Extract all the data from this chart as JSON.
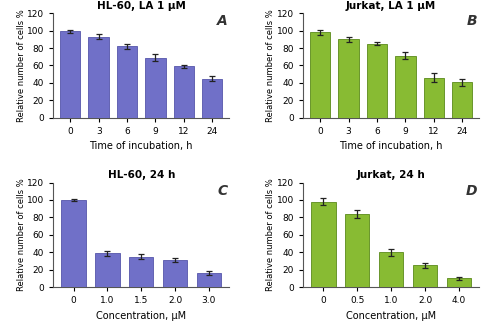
{
  "panel_A": {
    "title": "HL-60, LA 1 μM",
    "label": "A",
    "x_labels": [
      "0",
      "3",
      "6",
      "9",
      "12",
      "24"
    ],
    "values": [
      99,
      93,
      82,
      69,
      59,
      45
    ],
    "errors": [
      2,
      3,
      3,
      4,
      2,
      3
    ],
    "bar_color": "#7070c8",
    "bar_edge": "#5555aa",
    "xlabel": "Time of incubation, h",
    "ylabel": "Relative number of cells %",
    "ylim": [
      0,
      120
    ],
    "yticks": [
      0,
      20,
      40,
      60,
      80,
      100,
      120
    ]
  },
  "panel_B": {
    "title": "Jurkat, LA 1 μM",
    "label": "B",
    "x_labels": [
      "0",
      "3",
      "6",
      "9",
      "12",
      "24"
    ],
    "values": [
      98,
      90,
      85,
      71,
      46,
      41
    ],
    "errors": [
      3,
      3,
      2,
      4,
      5,
      4
    ],
    "bar_color": "#88bb33",
    "bar_edge": "#5a8a1a",
    "xlabel": "Time of incubation, h",
    "ylabel": "Relative number of cells %",
    "ylim": [
      0,
      120
    ],
    "yticks": [
      0,
      20,
      40,
      60,
      80,
      100,
      120
    ]
  },
  "panel_C": {
    "title": "HL-60, 24 h",
    "label": "C",
    "x_labels": [
      "0",
      "1.0",
      "1.5",
      "2.0",
      "3.0"
    ],
    "values": [
      100,
      39,
      35,
      31,
      16
    ],
    "errors": [
      1.5,
      3,
      2.5,
      2,
      2.5
    ],
    "bar_color": "#7070c8",
    "bar_edge": "#5555aa",
    "xlabel": "Concentration, μM",
    "ylabel": "Relative number of cells %",
    "ylim": [
      0,
      120
    ],
    "yticks": [
      0,
      20,
      40,
      60,
      80,
      100,
      120
    ]
  },
  "panel_D": {
    "title": "Jurkat, 24 h",
    "label": "D",
    "x_labels": [
      "0",
      "0.5",
      "1.0",
      "2.0",
      "4.0"
    ],
    "values": [
      98,
      84,
      40,
      25,
      10
    ],
    "errors": [
      4,
      5,
      4,
      3,
      2
    ],
    "bar_color": "#88bb33",
    "bar_edge": "#5a8a1a",
    "xlabel": "Concentration, μM",
    "ylabel": "Relative number of cells %",
    "ylim": [
      0,
      120
    ],
    "yticks": [
      0,
      20,
      40,
      60,
      80,
      100,
      120
    ]
  },
  "background_color": "#ffffff",
  "fig_width": 4.84,
  "fig_height": 3.3,
  "dpi": 100
}
